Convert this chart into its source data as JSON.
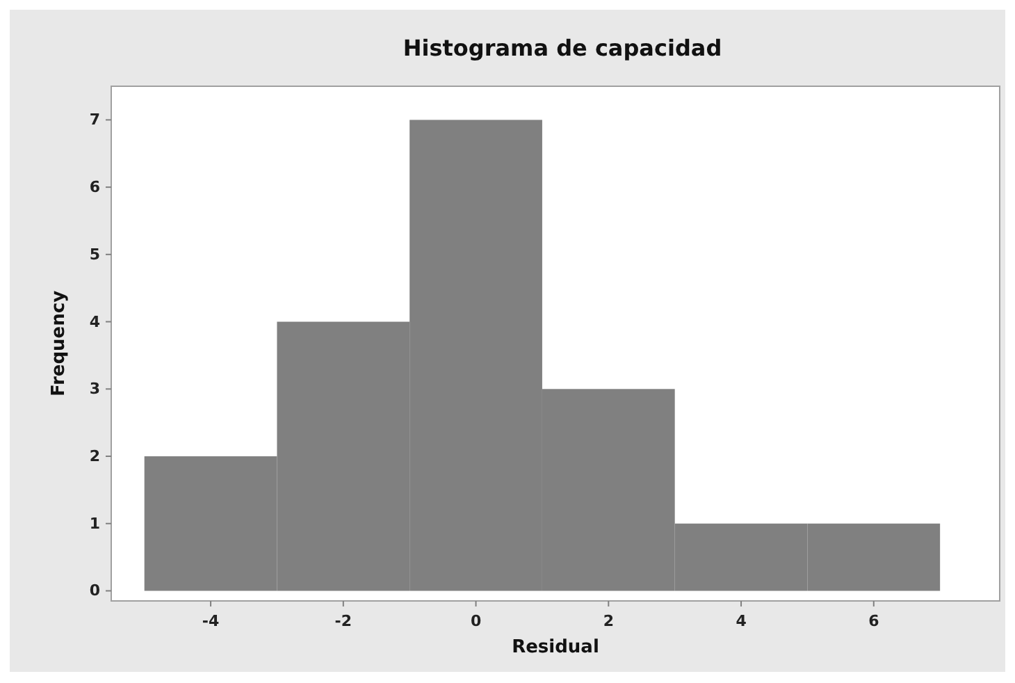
{
  "chart_data": {
    "type": "histogram",
    "title": "Histograma de capacidad",
    "xlabel": "Residual",
    "ylabel": "Frequency",
    "bins": [
      -5,
      -3,
      -1,
      1,
      3,
      5,
      7
    ],
    "values": [
      2,
      4,
      7,
      3,
      1,
      1
    ],
    "color": "#808080",
    "xlim": [
      -5.5,
      7.9
    ],
    "xticks": [
      -4,
      -2,
      0,
      2,
      4,
      6
    ],
    "ylim": [
      -0.15,
      7.5
    ],
    "yticks": [
      0,
      1,
      2,
      3,
      4,
      5,
      6,
      7
    ],
    "grid": false
  }
}
